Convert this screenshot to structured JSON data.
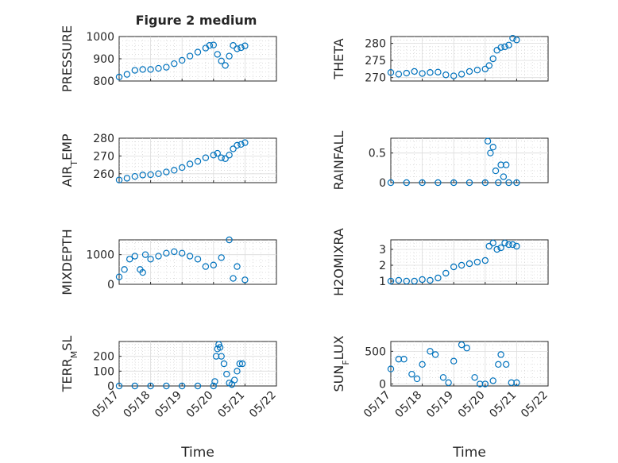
{
  "figure": {
    "colors": {
      "marker": "#0072bd",
      "axes": "#262626",
      "grid": "#dcdcdc"
    }
  },
  "chart_data": [
    {
      "type": "scatter",
      "title": "Figure 2 medium",
      "ylabel": "PRESSURE",
      "xlabel": "",
      "xlim": [
        "05/17",
        "05/22"
      ],
      "ylim": [
        800,
        1000
      ],
      "yticks": [
        800,
        900,
        1000
      ],
      "xticks": [
        "05/17",
        "05/18",
        "05/19",
        "05/20",
        "05/21",
        "05/22"
      ],
      "grid": true,
      "series": [
        {
          "x": [
            "05/17 00:00",
            "05/17 06:00",
            "05/17 12:00",
            "05/17 18:00",
            "05/18 00:00",
            "05/18 06:00",
            "05/18 12:00",
            "05/18 18:00",
            "05/19 00:00",
            "05/19 06:00",
            "05/19 12:00",
            "05/19 18:00",
            "05/19 21:00",
            "05/20 00:00",
            "05/20 03:00",
            "05/20 06:00",
            "05/20 09:00",
            "05/20 12:00",
            "05/20 15:00",
            "05/20 18:00",
            "05/20 21:00",
            "05/21 00:00"
          ],
          "y": [
            818,
            830,
            848,
            852,
            852,
            857,
            862,
            878,
            893,
            912,
            930,
            948,
            960,
            962,
            920,
            890,
            870,
            912,
            960,
            945,
            950,
            958
          ]
        }
      ]
    },
    {
      "type": "scatter",
      "title": "",
      "ylabel": "THETA",
      "xlabel": "",
      "xlim": [
        "05/17",
        "05/22"
      ],
      "ylim": [
        269,
        282
      ],
      "yticks": [
        270,
        275,
        280
      ],
      "xticks": [
        "05/17",
        "05/18",
        "05/19",
        "05/20",
        "05/21",
        "05/22"
      ],
      "grid": true,
      "series": [
        {
          "x": [
            "05/17 00:00",
            "05/17 06:00",
            "05/17 12:00",
            "05/17 18:00",
            "05/18 00:00",
            "05/18 06:00",
            "05/18 12:00",
            "05/18 18:00",
            "05/19 00:00",
            "05/19 06:00",
            "05/19 12:00",
            "05/19 18:00",
            "05/20 00:00",
            "05/20 03:00",
            "05/20 06:00",
            "05/20 09:00",
            "05/20 12:00",
            "05/20 15:00",
            "05/20 18:00",
            "05/20 21:00",
            "05/21 00:00"
          ],
          "y": [
            271.5,
            271.0,
            271.3,
            271.8,
            271.2,
            271.5,
            271.6,
            270.8,
            270.5,
            271.0,
            271.8,
            272.2,
            272.5,
            273.5,
            275.5,
            278.0,
            278.8,
            279.0,
            279.5,
            281.5,
            281.0
          ]
        }
      ]
    },
    {
      "type": "scatter",
      "title": "",
      "ylabel": "AIR_TEMP",
      "xlabel": "",
      "xlim": [
        "05/17",
        "05/22"
      ],
      "ylim": [
        255,
        280
      ],
      "yticks": [
        260,
        270,
        280
      ],
      "xticks": [
        "05/17",
        "05/18",
        "05/19",
        "05/20",
        "05/21",
        "05/22"
      ],
      "grid": true,
      "series": [
        {
          "x": [
            "05/17 00:00",
            "05/17 06:00",
            "05/17 12:00",
            "05/17 18:00",
            "05/18 00:00",
            "05/18 06:00",
            "05/18 12:00",
            "05/18 18:00",
            "05/19 00:00",
            "05/19 06:00",
            "05/19 12:00",
            "05/19 18:00",
            "05/20 00:00",
            "05/20 03:00",
            "05/20 06:00",
            "05/20 09:00",
            "05/20 12:00",
            "05/20 15:00",
            "05/20 18:00",
            "05/20 21:00",
            "05/21 00:00"
          ],
          "y": [
            256.5,
            257.5,
            258.5,
            259.3,
            259.5,
            260.0,
            261.0,
            262.0,
            263.5,
            265.5,
            267.0,
            269.0,
            270.5,
            271.5,
            269.0,
            268.5,
            270.5,
            274.0,
            276.0,
            276.5,
            277.5
          ]
        }
      ]
    },
    {
      "type": "scatter",
      "title": "",
      "ylabel": "RAINFALL",
      "xlabel": "",
      "xlim": [
        "05/17",
        "05/22"
      ],
      "ylim": [
        0,
        0.75
      ],
      "yticks": [
        0,
        0.5
      ],
      "xticks": [
        "05/17",
        "05/18",
        "05/19",
        "05/20",
        "05/21",
        "05/22"
      ],
      "grid": true,
      "series": [
        {
          "x": [
            "05/17 00:00",
            "05/17 12:00",
            "05/18 00:00",
            "05/18 12:00",
            "05/19 00:00",
            "05/19 12:00",
            "05/20 00:00",
            "05/20 02:00",
            "05/20 04:00",
            "05/20 06:00",
            "05/20 08:00",
            "05/20 10:00",
            "05/20 12:00",
            "05/20 14:00",
            "05/20 16:00",
            "05/20 18:00",
            "05/21 00:00"
          ],
          "y": [
            0,
            0,
            0,
            0,
            0,
            0,
            0,
            0.7,
            0.5,
            0.6,
            0.2,
            0,
            0.3,
            0.1,
            0.3,
            0,
            0
          ]
        }
      ]
    },
    {
      "type": "scatter",
      "title": "",
      "ylabel": "MIXDEPTH",
      "xlabel": "",
      "xlim": [
        "05/17",
        "05/22"
      ],
      "ylim": [
        0,
        1500
      ],
      "yticks": [
        0,
        1000
      ],
      "xticks": [
        "05/17",
        "05/18",
        "05/19",
        "05/20",
        "05/21",
        "05/22"
      ],
      "grid": true,
      "series": [
        {
          "x": [
            "05/17 00:00",
            "05/17 04:00",
            "05/17 08:00",
            "05/17 12:00",
            "05/17 16:00",
            "05/17 18:00",
            "05/17 20:00",
            "05/18 00:00",
            "05/18 06:00",
            "05/18 12:00",
            "05/18 18:00",
            "05/19 00:00",
            "05/19 06:00",
            "05/19 12:00",
            "05/19 18:00",
            "05/20 00:00",
            "05/20 06:00",
            "05/20 12:00",
            "05/20 15:00",
            "05/20 18:00",
            "05/21 00:00"
          ],
          "y": [
            250,
            500,
            850,
            950,
            500,
            400,
            1000,
            850,
            950,
            1050,
            1100,
            1050,
            950,
            850,
            600,
            650,
            900,
            1500,
            200,
            600,
            150
          ]
        }
      ]
    },
    {
      "type": "scatter",
      "title": "",
      "ylabel": "H2OMIXRA",
      "xlabel": "",
      "xlim": [
        "05/17",
        "05/22"
      ],
      "ylim": [
        0.8,
        3.6
      ],
      "yticks": [
        1,
        2,
        3
      ],
      "xticks": [
        "05/17",
        "05/18",
        "05/19",
        "05/20",
        "05/21",
        "05/22"
      ],
      "grid": true,
      "series": [
        {
          "x": [
            "05/17 00:00",
            "05/17 06:00",
            "05/17 12:00",
            "05/17 18:00",
            "05/18 00:00",
            "05/18 06:00",
            "05/18 12:00",
            "05/18 18:00",
            "05/19 00:00",
            "05/19 06:00",
            "05/19 12:00",
            "05/19 18:00",
            "05/20 00:00",
            "05/20 03:00",
            "05/20 06:00",
            "05/20 09:00",
            "05/20 12:00",
            "05/20 15:00",
            "05/20 18:00",
            "05/20 21:00",
            "05/21 00:00"
          ],
          "y": [
            1.0,
            1.05,
            1.0,
            1.0,
            1.1,
            1.05,
            1.2,
            1.5,
            1.9,
            2.0,
            2.1,
            2.2,
            2.3,
            3.2,
            3.4,
            3.0,
            3.1,
            3.4,
            3.3,
            3.3,
            3.2
          ]
        }
      ]
    },
    {
      "type": "scatter",
      "title": "",
      "ylabel": "TERR_MSL",
      "xlabel": "Time",
      "xlim": [
        "05/17",
        "05/22"
      ],
      "ylim": [
        0,
        300
      ],
      "yticks": [
        0,
        100,
        200
      ],
      "xticks": [
        "05/17",
        "05/18",
        "05/19",
        "05/20",
        "05/21",
        "05/22"
      ],
      "grid": true,
      "series": [
        {
          "x": [
            "05/17 00:00",
            "05/17 12:00",
            "05/18 00:00",
            "05/18 12:00",
            "05/19 00:00",
            "05/19 12:00",
            "05/20 00:00",
            "05/20 01:00",
            "05/20 02:00",
            "05/20 03:00",
            "05/20 04:00",
            "05/20 05:00",
            "05/20 06:00",
            "05/20 08:00",
            "05/20 10:00",
            "05/20 12:00",
            "05/20 14:00",
            "05/20 16:00",
            "05/20 18:00",
            "05/20 20:00",
            "05/20 22:00"
          ],
          "y": [
            0,
            0,
            0,
            0,
            0,
            0,
            0,
            30,
            200,
            250,
            280,
            260,
            200,
            150,
            80,
            20,
            10,
            40,
            100,
            150,
            150
          ]
        }
      ]
    },
    {
      "type": "scatter",
      "title": "",
      "ylabel": "SUN_FLUX",
      "xlabel": "Time",
      "xlim": [
        "05/17",
        "05/22"
      ],
      "ylim": [
        -30,
        650
      ],
      "yticks": [
        0,
        500
      ],
      "xticks": [
        "05/17",
        "05/18",
        "05/19",
        "05/20",
        "05/21",
        "05/22"
      ],
      "grid": true,
      "series": [
        {
          "x": [
            "05/17 00:00",
            "05/17 06:00",
            "05/17 10:00",
            "05/17 16:00",
            "05/17 20:00",
            "05/18 00:00",
            "05/18 06:00",
            "05/18 10:00",
            "05/18 16:00",
            "05/18 20:00",
            "05/19 00:00",
            "05/19 06:00",
            "05/19 10:00",
            "05/19 16:00",
            "05/19 20:00",
            "05/20 00:00",
            "05/20 06:00",
            "05/20 10:00",
            "05/20 12:00",
            "05/20 16:00",
            "05/20 20:00",
            "05/21 00:00"
          ],
          "y": [
            230,
            380,
            380,
            150,
            80,
            300,
            500,
            450,
            100,
            20,
            350,
            600,
            550,
            100,
            0,
            0,
            50,
            300,
            450,
            300,
            20,
            20
          ]
        }
      ]
    }
  ]
}
